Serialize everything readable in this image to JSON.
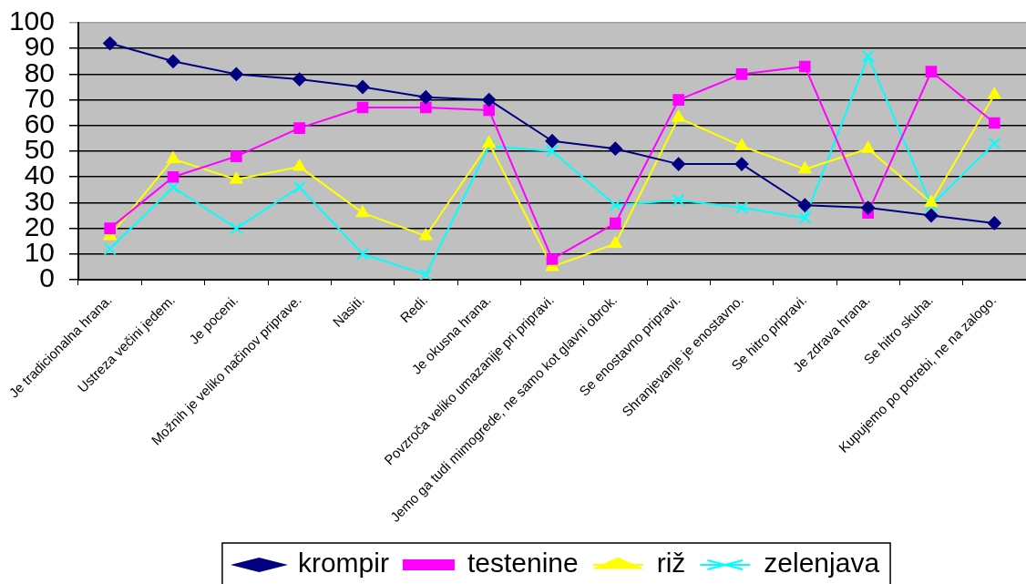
{
  "chart_data": {
    "type": "line",
    "categories": [
      "Je tradicionalna hrana.",
      "Ustreza večini jedem.",
      "Je poceni.",
      "Možnih je veliko načinov priprave.",
      "Nasiti.",
      "Redi.",
      "Je okusna hrana.",
      "Povzroča veliko umazanije pri pripravi.",
      "Jemo ga tudi mimogrede, ne samo kot glavni obrok.",
      "Se enostavno pripravi.",
      "Shranjevanje je enostavno.",
      "Se hitro pripravi.",
      "Je zdrava hrana.",
      "Se hitro skuha.",
      "Kupujemo po potrebi, ne na zalogo."
    ],
    "series": [
      {
        "name": "krompir",
        "color": "#000080",
        "marker": "diamond",
        "values": [
          92,
          85,
          80,
          78,
          75,
          71,
          70,
          54,
          51,
          45,
          45,
          29,
          28,
          25,
          22
        ]
      },
      {
        "name": "testenine",
        "color": "#ff00ff",
        "marker": "square",
        "values": [
          20,
          40,
          48,
          59,
          67,
          67,
          66,
          8,
          22,
          70,
          80,
          83,
          26,
          81,
          61
        ]
      },
      {
        "name": "riž",
        "color": "#ffff00",
        "marker": "triangle",
        "values": [
          17,
          47,
          39,
          44,
          26,
          17,
          53,
          5,
          14,
          63,
          52,
          43,
          51,
          30,
          72
        ]
      },
      {
        "name": "zelenjava",
        "color": "#00ffff",
        "marker": "cross",
        "values": [
          12,
          36,
          20,
          36,
          10,
          2,
          52,
          50,
          29,
          31,
          28,
          24,
          87,
          29,
          53
        ]
      }
    ],
    "ylim": [
      0,
      100
    ],
    "yticks": [
      0,
      10,
      20,
      30,
      40,
      50,
      60,
      70,
      80,
      90,
      100
    ],
    "grid": "y",
    "legend": "bottom"
  }
}
